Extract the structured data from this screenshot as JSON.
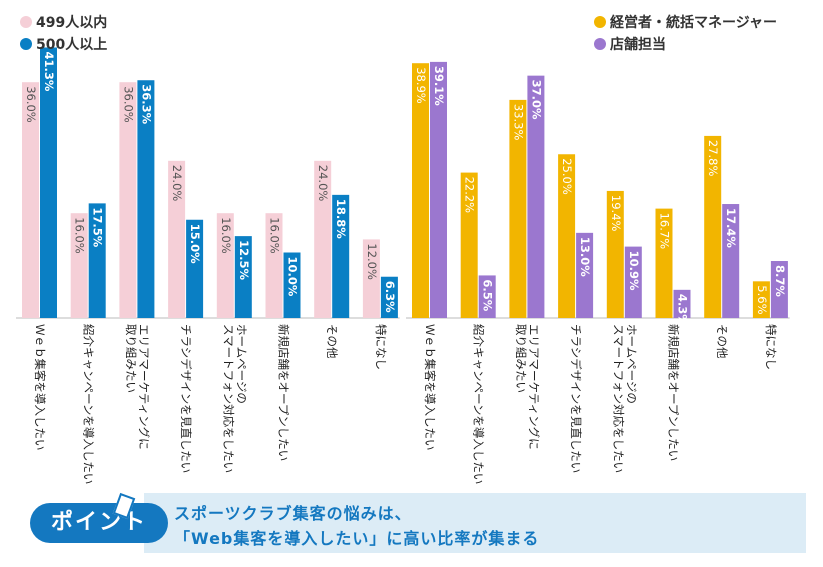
{
  "colors": {
    "s499": "#f5cfd7",
    "s500": "#0a7fc4",
    "manager": "#f2b500",
    "store": "#9b77cf",
    "banner_blue": "#1478c0",
    "banner_bg": "#dcecf6"
  },
  "chart_data": [
    {
      "type": "bar",
      "categories": [
        "Ｗｅｂ集客を導入したい",
        "紹介キャンペーンを導入したい",
        "エリアマーケティングに取り組みたい",
        "チラシデザインを見直したい",
        "ホームページのスマートフォン対応をしたい",
        "新規店舗をオープンしたい",
        "その他",
        "特になし"
      ],
      "category_lines": [
        [
          "Ｗｅｂ集客を導入したい"
        ],
        [
          "紹介キャンペーンを導入したい"
        ],
        [
          "エリアマーケティングに",
          "取り組みたい"
        ],
        [
          "チラシデザインを見直したい"
        ],
        [
          "ホームページの",
          "スマートフォン対応をしたい"
        ],
        [
          "新規店舗をオープンしたい"
        ],
        [
          "その他"
        ],
        [
          "特になし"
        ]
      ],
      "series": [
        {
          "name": "499人以内",
          "values": [
            36.0,
            16.0,
            36.0,
            24.0,
            16.0,
            16.0,
            24.0,
            12.0
          ],
          "labels": [
            "36.0%",
            "16.0%",
            "36.0%",
            "24.0%",
            "16.0%",
            "16.0%",
            "24.0%",
            "12.0%"
          ]
        },
        {
          "name": "500人以上",
          "values": [
            41.3,
            17.5,
            36.3,
            15.0,
            12.5,
            10.0,
            18.8,
            6.3
          ],
          "labels": [
            "41.3%",
            "17.5%",
            "36.3%",
            "15.0%",
            "12.5%",
            "10.0%",
            "18.8%",
            "6.3%"
          ]
        }
      ],
      "ylim": [
        0,
        45
      ],
      "legend": "top-left"
    },
    {
      "type": "bar",
      "categories": [
        "Ｗｅｂ集客を導入したい",
        "紹介キャンペーンを導入したい",
        "エリアマーケティングに取り組みたい",
        "チラシデザインを見直したい",
        "ホームページのスマートフォン対応をしたい",
        "新規店舗をオープンしたい",
        "その他",
        "特になし"
      ],
      "category_lines": [
        [
          "Ｗｅｂ集客を導入したい"
        ],
        [
          "紹介キャンペーンを導入したい"
        ],
        [
          "エリアマーケティングに",
          "取り組みたい"
        ],
        [
          "チラシデザインを見直したい"
        ],
        [
          "ホームページの",
          "スマートフォン対応をしたい"
        ],
        [
          "新規店舗をオープンしたい"
        ],
        [
          "その他"
        ],
        [
          "特になし"
        ]
      ],
      "series": [
        {
          "name": "経営者・統括マネージャー",
          "values": [
            38.9,
            22.2,
            33.3,
            25.0,
            19.4,
            16.7,
            27.8,
            5.6
          ],
          "labels": [
            "38.9%",
            "22.2%",
            "33.3%",
            "25.0%",
            "19.4%",
            "16.7%",
            "27.8%",
            "5.6%"
          ]
        },
        {
          "name": "店舗担当",
          "values": [
            39.1,
            6.5,
            37.0,
            13.0,
            10.9,
            4.3,
            17.4,
            8.7
          ],
          "labels": [
            "39.1%",
            "6.5%",
            "37.0%",
            "13.0%",
            "10.9%",
            "4.3%",
            "17.4%",
            "8.7%"
          ]
        }
      ],
      "ylim": [
        0,
        45
      ],
      "legend": "top-right"
    }
  ],
  "banner": {
    "badge": "ポイント",
    "line1": "スポーツクラブ集客の悩みは、",
    "line2": "「Web集客を導入したい」に高い比率が集まる"
  }
}
